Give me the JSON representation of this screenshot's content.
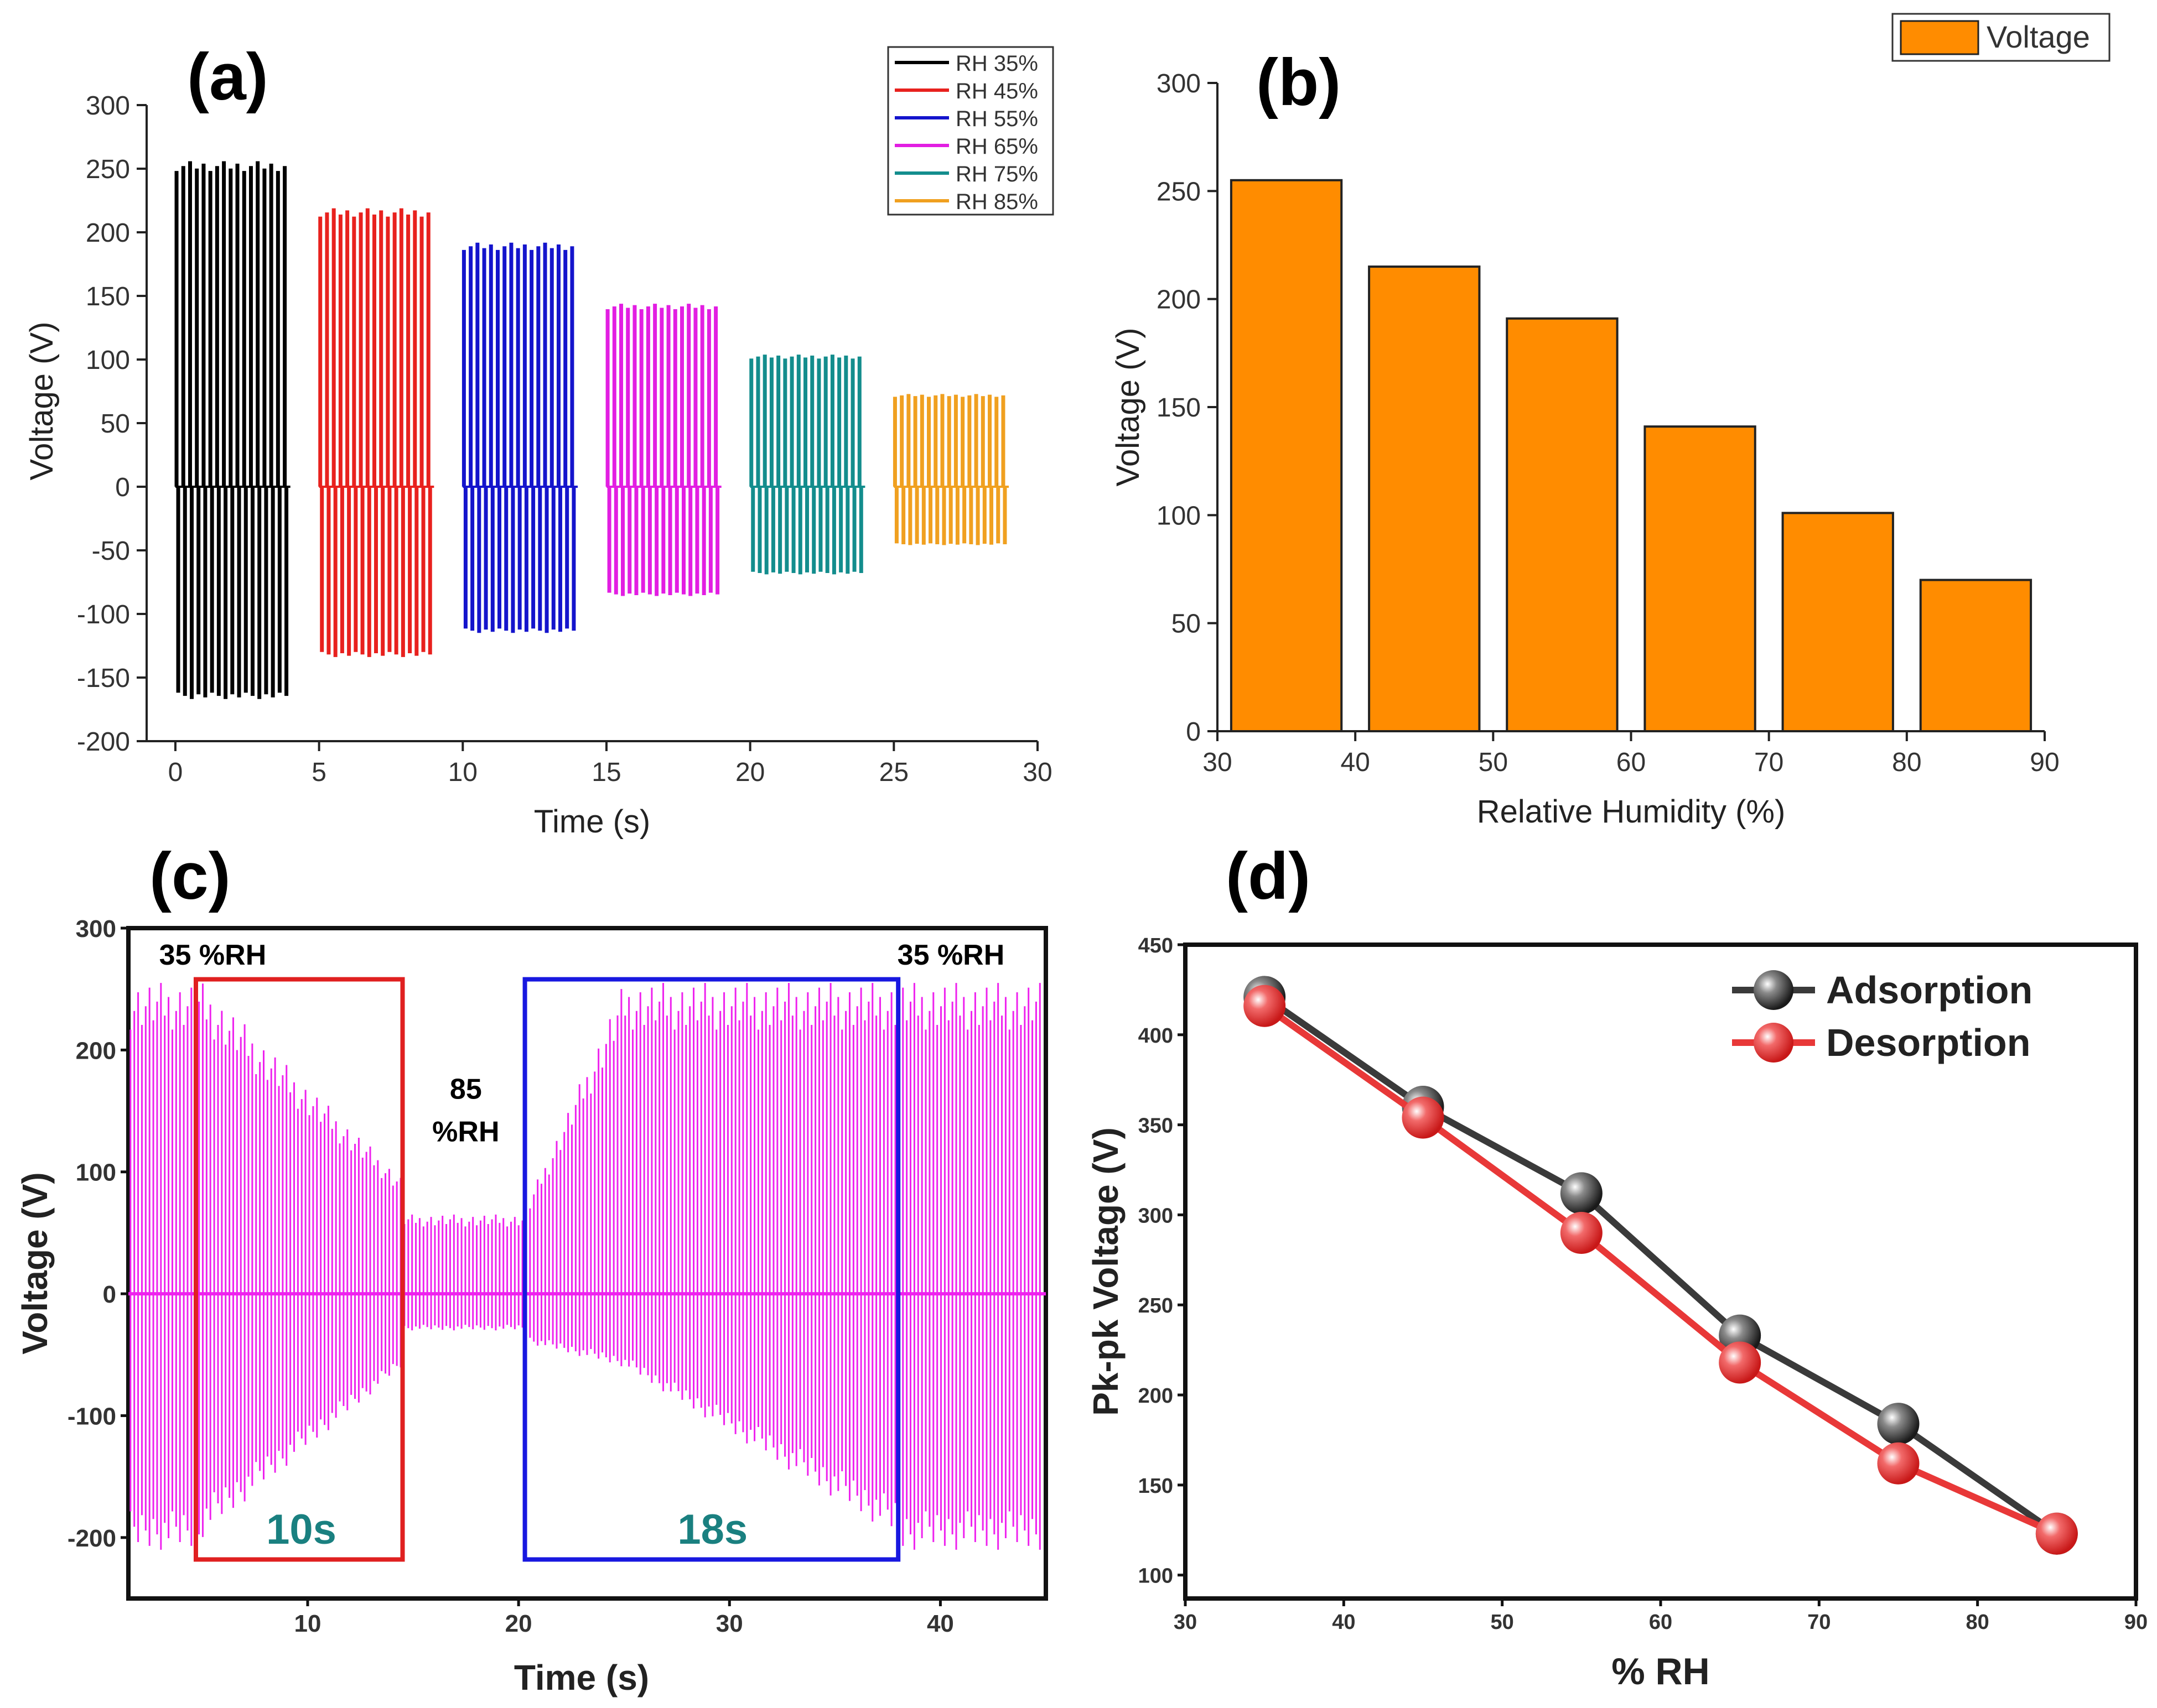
{
  "panels": [
    {
      "id": "a",
      "letter": "(a)",
      "type": "line",
      "title": "",
      "xlabel": "Time (s)",
      "ylabel": "Voltage (V)",
      "xlim": [
        -1,
        30
      ],
      "ylim": [
        -200,
        300
      ],
      "xticks": [
        0,
        5,
        10,
        15,
        20,
        25,
        30
      ],
      "yticks": [
        -200,
        -150,
        -100,
        -50,
        0,
        50,
        100,
        150,
        200,
        250,
        300
      ],
      "legend_position": "top-right",
      "series": [
        {
          "name": "RH 35%",
          "color": "#000000",
          "t_start": 0,
          "t_end": 4,
          "pulses": 17,
          "peak_pos": 255,
          "peak_neg": -166
        },
        {
          "name": "RH 45%",
          "color": "#e8211e",
          "t_start": 5,
          "t_end": 9,
          "pulses": 17,
          "peak_pos": 218,
          "peak_neg": -133
        },
        {
          "name": "RH 55%",
          "color": "#1414cc",
          "t_start": 10,
          "t_end": 14,
          "pulses": 17,
          "peak_pos": 191,
          "peak_neg": -114
        },
        {
          "name": "RH 65%",
          "color": "#e21ee2",
          "t_start": 15,
          "t_end": 19,
          "pulses": 17,
          "peak_pos": 143,
          "peak_neg": -85
        },
        {
          "name": "RH 75%",
          "color": "#138d8d",
          "t_start": 20,
          "t_end": 24,
          "pulses": 17,
          "peak_pos": 103,
          "peak_neg": -68
        },
        {
          "name": "RH 85%",
          "color": "#f0a020",
          "t_start": 25,
          "t_end": 29,
          "pulses": 17,
          "peak_pos": 72,
          "peak_neg": -45
        }
      ]
    },
    {
      "id": "b",
      "letter": "(b)",
      "type": "bar",
      "title": "",
      "xlabel": "Relative Humidity (%)",
      "ylabel": "Voltage (V)",
      "xlim": [
        30,
        90
      ],
      "ylim": [
        0,
        300
      ],
      "xticks": [
        30,
        40,
        50,
        60,
        70,
        80,
        90
      ],
      "yticks": [
        0,
        50,
        100,
        150,
        200,
        250,
        300
      ],
      "bar_color": "#ff8c00",
      "legend_position": "top-right",
      "legend_label": "Voltage",
      "categories": [
        35,
        45,
        55,
        65,
        75,
        85
      ],
      "values": [
        255,
        215,
        191,
        141,
        101,
        70
      ]
    },
    {
      "id": "c",
      "letter": "(c)",
      "type": "line",
      "title": "",
      "xlabel": "Time (s)",
      "ylabel": "Voltage (V)",
      "xlim": [
        1.5,
        45
      ],
      "ylim": [
        -250,
        300
      ],
      "xticks": [
        10,
        20,
        30,
        40
      ],
      "yticks": [
        -200,
        -100,
        0,
        100,
        200,
        300
      ],
      "color": "#ee22ee",
      "annotations": [
        {
          "text": "35 %RH",
          "x": 5.5,
          "y": 270,
          "color": "#000000"
        },
        {
          "text": "35 %RH",
          "x": 40.5,
          "y": 270,
          "color": "#000000"
        },
        {
          "text": "85",
          "x": 17.5,
          "y": 160,
          "color": "#000000"
        },
        {
          "text": "%RH",
          "x": 17.5,
          "y": 125,
          "color": "#000000"
        },
        {
          "text": "10s",
          "x": 9.7,
          "y": -205,
          "color": "#1a8080"
        },
        {
          "text": "18s",
          "x": 29.2,
          "y": -205,
          "color": "#1a8080"
        }
      ],
      "boxes": [
        {
          "x0": 4.7,
          "x1": 14.5,
          "y0": -218,
          "y1": 258,
          "color": "#e02020"
        },
        {
          "x0": 20.3,
          "x1": 38,
          "y0": -218,
          "y1": 258,
          "color": "#1818e0"
        }
      ]
    },
    {
      "id": "d",
      "letter": "(d)",
      "type": "line",
      "title": "",
      "xlabel": "% RH",
      "ylabel": "Pk-pk Voltage (V)",
      "xlim": [
        30,
        90
      ],
      "ylim": [
        87,
        450
      ],
      "xticks": [
        30,
        40,
        50,
        60,
        70,
        80,
        90
      ],
      "yticks": [
        100,
        150,
        200,
        250,
        300,
        350,
        400,
        450
      ],
      "legend_position": "top-right",
      "series": [
        {
          "name": "Adsorption",
          "color": "#3a3a3a",
          "x": [
            35,
            45,
            55,
            65,
            75,
            85
          ],
          "y": [
            421,
            360,
            312,
            233,
            184,
            123
          ]
        },
        {
          "name": "Desorption",
          "color": "#e83838",
          "x": [
            35,
            45,
            55,
            65,
            75,
            85
          ],
          "y": [
            416,
            354,
            290,
            218,
            162,
            123
          ]
        }
      ]
    }
  ],
  "chart_data": [
    {
      "type": "line",
      "title": "(a)",
      "xlabel": "Time (s)",
      "ylabel": "Voltage (V)",
      "xlim": [
        -1,
        30
      ],
      "ylim": [
        -200,
        300
      ],
      "series": [
        {
          "name": "RH 35%",
          "time_range": [
            0,
            4
          ],
          "peak_positive": 255,
          "peak_negative": -166
        },
        {
          "name": "RH 45%",
          "time_range": [
            5,
            9
          ],
          "peak_positive": 218,
          "peak_negative": -133
        },
        {
          "name": "RH 55%",
          "time_range": [
            10,
            14
          ],
          "peak_positive": 191,
          "peak_negative": -114
        },
        {
          "name": "RH 65%",
          "time_range": [
            15,
            19
          ],
          "peak_positive": 143,
          "peak_negative": -85
        },
        {
          "name": "RH 75%",
          "time_range": [
            20,
            24
          ],
          "peak_positive": 103,
          "peak_negative": -68
        },
        {
          "name": "RH 85%",
          "time_range": [
            25,
            29
          ],
          "peak_positive": 72,
          "peak_negative": -45
        }
      ]
    },
    {
      "type": "bar",
      "title": "(b)",
      "xlabel": "Relative Humidity (%)",
      "ylabel": "Voltage (V)",
      "categories": [
        35,
        45,
        55,
        65,
        75,
        85
      ],
      "values": [
        255,
        215,
        191,
        141,
        101,
        70
      ],
      "legend": [
        "Voltage"
      ],
      "ylim": [
        0,
        300
      ]
    },
    {
      "type": "line",
      "title": "(c)",
      "xlabel": "Time (s)",
      "ylabel": "Voltage (V)",
      "xlim": [
        1.5,
        45
      ],
      "ylim": [
        -250,
        300
      ],
      "annotations": [
        "35 %RH",
        "85 %RH",
        "35 %RH",
        "10s",
        "18s"
      ]
    },
    {
      "type": "line",
      "title": "(d)",
      "xlabel": "% RH",
      "ylabel": "Pk-pk Voltage (V)",
      "x": [
        35,
        45,
        55,
        65,
        75,
        85
      ],
      "series": [
        {
          "name": "Adsorption",
          "values": [
            421,
            360,
            312,
            233,
            184,
            123
          ]
        },
        {
          "name": "Desorption",
          "values": [
            416,
            354,
            290,
            218,
            162,
            123
          ]
        }
      ],
      "xlim": [
        30,
        90
      ],
      "ylim": [
        87,
        450
      ]
    }
  ]
}
